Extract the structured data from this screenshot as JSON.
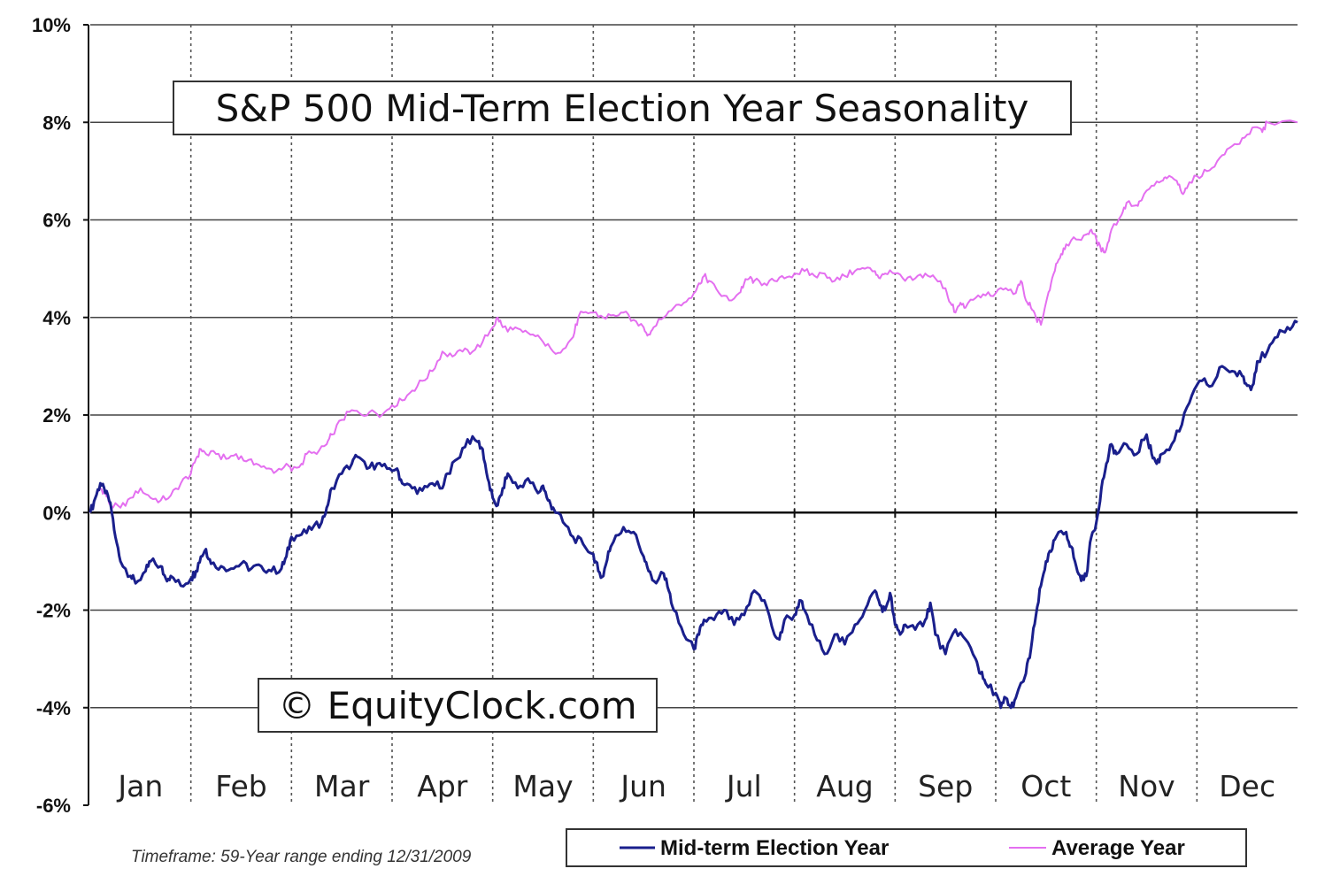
{
  "chart_data": {
    "type": "line",
    "title": "S&P 500 Mid-Term Election Year Seasonality",
    "watermark": "© EquityClock.com",
    "footnote": "Timeframe: 59-Year range ending 12/31/2009",
    "ylim": [
      -6,
      10
    ],
    "ytick_values": [
      10,
      8,
      6,
      4,
      2,
      0,
      -2,
      -4,
      -6
    ],
    "ytick_labels": [
      "10%",
      "8%",
      "6%",
      "4%",
      "2%",
      "0%",
      "-2%",
      "-4%",
      "-6%"
    ],
    "x_categories": [
      "Jan",
      "Feb",
      "Mar",
      "Apr",
      "May",
      "Jun",
      "Jul",
      "Aug",
      "Sep",
      "Oct",
      "Nov",
      "Dec"
    ],
    "xlim": [
      0,
      12
    ],
    "grid": "horizontal solid at y ticks, vertical dotted at month boundaries",
    "legend_position": "bottom-right",
    "series": [
      {
        "name": "Mid-term Election Year",
        "color": "#1a1f8c",
        "points": [
          [
            0,
            0
          ],
          [
            0.05,
            0.3
          ],
          [
            0.1,
            0.6
          ],
          [
            0.15,
            0.4
          ],
          [
            0.2,
            0.2
          ],
          [
            0.25,
            -0.5
          ],
          [
            0.3,
            -1.0
          ],
          [
            0.4,
            -1.3
          ],
          [
            0.45,
            -1.45
          ],
          [
            0.55,
            -1.2
          ],
          [
            0.6,
            -1.0
          ],
          [
            0.7,
            -1.1
          ],
          [
            0.75,
            -1.35
          ],
          [
            0.8,
            -1.3
          ],
          [
            0.9,
            -1.5
          ],
          [
            1.0,
            -1.35
          ],
          [
            1.05,
            -1.2
          ],
          [
            1.1,
            -0.9
          ],
          [
            1.15,
            -0.75
          ],
          [
            1.2,
            -1.05
          ],
          [
            1.3,
            -1.1
          ],
          [
            1.4,
            -1.15
          ],
          [
            1.5,
            -1.05
          ],
          [
            1.6,
            -1.15
          ],
          [
            1.7,
            -1.1
          ],
          [
            1.8,
            -1.2
          ],
          [
            1.9,
            -1.15
          ],
          [
            1.95,
            -0.9
          ],
          [
            2.0,
            -0.5
          ],
          [
            2.1,
            -0.45
          ],
          [
            2.2,
            -0.35
          ],
          [
            2.3,
            -0.2
          ],
          [
            2.35,
            0.1
          ],
          [
            2.4,
            0.5
          ],
          [
            2.5,
            0.8
          ],
          [
            2.6,
            1.0
          ],
          [
            2.65,
            1.15
          ],
          [
            2.75,
            0.9
          ],
          [
            2.85,
            1.0
          ],
          [
            2.95,
            0.9
          ],
          [
            3.05,
            0.9
          ],
          [
            3.1,
            0.6
          ],
          [
            3.2,
            0.5
          ],
          [
            3.3,
            0.45
          ],
          [
            3.4,
            0.6
          ],
          [
            3.5,
            0.5
          ],
          [
            3.55,
            0.8
          ],
          [
            3.65,
            1.1
          ],
          [
            3.75,
            1.5
          ],
          [
            3.85,
            1.45
          ],
          [
            3.9,
            1.3
          ],
          [
            3.95,
            0.7
          ],
          [
            4.0,
            0.3
          ],
          [
            4.05,
            0.15
          ],
          [
            4.1,
            0.5
          ],
          [
            4.15,
            0.8
          ],
          [
            4.25,
            0.5
          ],
          [
            4.35,
            0.7
          ],
          [
            4.45,
            0.4
          ],
          [
            4.5,
            0.55
          ],
          [
            4.55,
            0.25
          ],
          [
            4.6,
            0.1
          ],
          [
            4.7,
            -0.2
          ],
          [
            4.8,
            -0.5
          ],
          [
            4.9,
            -0.65
          ],
          [
            5.0,
            -0.85
          ],
          [
            5.05,
            -1.2
          ],
          [
            5.1,
            -1.3
          ],
          [
            5.15,
            -0.8
          ],
          [
            5.2,
            -0.6
          ],
          [
            5.3,
            -0.3
          ],
          [
            5.4,
            -0.4
          ],
          [
            5.5,
            -0.9
          ],
          [
            5.55,
            -1.2
          ],
          [
            5.6,
            -1.4
          ],
          [
            5.7,
            -1.25
          ],
          [
            5.75,
            -1.6
          ],
          [
            5.8,
            -2.0
          ],
          [
            5.9,
            -2.5
          ],
          [
            6.0,
            -2.8
          ],
          [
            6.05,
            -2.5
          ],
          [
            6.1,
            -2.2
          ],
          [
            6.2,
            -2.2
          ],
          [
            6.3,
            -2.0
          ],
          [
            6.4,
            -2.3
          ],
          [
            6.5,
            -2.1
          ],
          [
            6.6,
            -1.6
          ],
          [
            6.7,
            -1.8
          ],
          [
            6.8,
            -2.5
          ],
          [
            6.85,
            -2.6
          ],
          [
            6.9,
            -2.2
          ],
          [
            7.0,
            -2.1
          ],
          [
            7.05,
            -1.8
          ],
          [
            7.1,
            -2.0
          ],
          [
            7.2,
            -2.5
          ],
          [
            7.3,
            -2.9
          ],
          [
            7.4,
            -2.5
          ],
          [
            7.5,
            -2.7
          ],
          [
            7.6,
            -2.3
          ],
          [
            7.7,
            -2.0
          ],
          [
            7.8,
            -1.6
          ],
          [
            7.85,
            -1.9
          ],
          [
            7.9,
            -2.0
          ],
          [
            7.95,
            -1.65
          ],
          [
            8.0,
            -2.3
          ],
          [
            8.05,
            -2.5
          ],
          [
            8.1,
            -2.3
          ],
          [
            8.2,
            -2.4
          ],
          [
            8.3,
            -2.2
          ],
          [
            8.35,
            -1.85
          ],
          [
            8.4,
            -2.5
          ],
          [
            8.5,
            -2.9
          ],
          [
            8.6,
            -2.4
          ],
          [
            8.7,
            -2.6
          ],
          [
            8.8,
            -3.0
          ],
          [
            8.85,
            -3.3
          ],
          [
            8.9,
            -3.5
          ],
          [
            9.0,
            -3.7
          ],
          [
            9.05,
            -4.0
          ],
          [
            9.1,
            -3.8
          ],
          [
            9.15,
            -4.0
          ],
          [
            9.2,
            -3.8
          ],
          [
            9.3,
            -3.3
          ],
          [
            9.35,
            -2.8
          ],
          [
            9.4,
            -2.1
          ],
          [
            9.45,
            -1.5
          ],
          [
            9.5,
            -1.0
          ],
          [
            9.55,
            -0.8
          ],
          [
            9.6,
            -0.5
          ],
          [
            9.7,
            -0.4
          ],
          [
            9.75,
            -0.7
          ],
          [
            9.8,
            -1.1
          ],
          [
            9.85,
            -1.4
          ],
          [
            9.9,
            -1.3
          ],
          [
            9.95,
            -0.5
          ],
          [
            10.0,
            -0.2
          ],
          [
            10.05,
            0.5
          ],
          [
            10.1,
            1.0
          ],
          [
            10.15,
            1.4
          ],
          [
            10.2,
            1.2
          ],
          [
            10.3,
            1.4
          ],
          [
            10.4,
            1.2
          ],
          [
            10.5,
            1.6
          ],
          [
            10.55,
            1.2
          ],
          [
            10.6,
            1.0
          ],
          [
            10.65,
            1.2
          ],
          [
            10.75,
            1.4
          ],
          [
            10.85,
            1.8
          ],
          [
            10.95,
            2.4
          ],
          [
            11.05,
            2.7
          ],
          [
            11.15,
            2.6
          ],
          [
            11.25,
            3.0
          ],
          [
            11.35,
            2.9
          ],
          [
            11.45,
            2.8
          ],
          [
            11.5,
            2.6
          ],
          [
            11.55,
            2.6
          ],
          [
            11.6,
            3.1
          ],
          [
            11.7,
            3.3
          ],
          [
            11.8,
            3.6
          ],
          [
            11.9,
            3.8
          ],
          [
            12.0,
            3.9
          ]
        ]
      },
      {
        "name": "Average Year",
        "color": "#e46ff0",
        "points": [
          [
            0,
            0
          ],
          [
            0.05,
            0.3
          ],
          [
            0.1,
            0.5
          ],
          [
            0.15,
            0.4
          ],
          [
            0.2,
            0.15
          ],
          [
            0.3,
            0.1
          ],
          [
            0.4,
            0.3
          ],
          [
            0.5,
            0.5
          ],
          [
            0.6,
            0.3
          ],
          [
            0.7,
            0.25
          ],
          [
            0.8,
            0.35
          ],
          [
            0.9,
            0.6
          ],
          [
            1.0,
            0.8
          ],
          [
            1.05,
            1.1
          ],
          [
            1.1,
            1.3
          ],
          [
            1.15,
            1.2
          ],
          [
            1.25,
            1.2
          ],
          [
            1.35,
            1.1
          ],
          [
            1.45,
            1.2
          ],
          [
            1.55,
            1.05
          ],
          [
            1.65,
            1.0
          ],
          [
            1.75,
            0.9
          ],
          [
            1.85,
            0.85
          ],
          [
            1.95,
            1.0
          ],
          [
            2.0,
            0.85
          ],
          [
            2.1,
            1.0
          ],
          [
            2.15,
            1.2
          ],
          [
            2.25,
            1.2
          ],
          [
            2.35,
            1.4
          ],
          [
            2.4,
            1.6
          ],
          [
            2.5,
            1.9
          ],
          [
            2.6,
            2.1
          ],
          [
            2.7,
            2.0
          ],
          [
            2.8,
            2.1
          ],
          [
            2.9,
            2.0
          ],
          [
            3.0,
            2.2
          ],
          [
            3.1,
            2.3
          ],
          [
            3.2,
            2.5
          ],
          [
            3.3,
            2.7
          ],
          [
            3.4,
            2.9
          ],
          [
            3.5,
            3.3
          ],
          [
            3.6,
            3.2
          ],
          [
            3.7,
            3.3
          ],
          [
            3.8,
            3.3
          ],
          [
            3.9,
            3.5
          ],
          [
            4.0,
            3.8
          ],
          [
            4.05,
            4.0
          ],
          [
            4.1,
            3.8
          ],
          [
            4.2,
            3.75
          ],
          [
            4.3,
            3.7
          ],
          [
            4.4,
            3.65
          ],
          [
            4.5,
            3.5
          ],
          [
            4.6,
            3.3
          ],
          [
            4.7,
            3.35
          ],
          [
            4.8,
            3.6
          ],
          [
            4.85,
            4.0
          ],
          [
            4.9,
            4.1
          ],
          [
            5.0,
            4.1
          ],
          [
            5.1,
            4.0
          ],
          [
            5.2,
            4.05
          ],
          [
            5.3,
            4.1
          ],
          [
            5.4,
            3.95
          ],
          [
            5.5,
            3.8
          ],
          [
            5.55,
            3.65
          ],
          [
            5.6,
            3.8
          ],
          [
            5.7,
            4.0
          ],
          [
            5.8,
            4.2
          ],
          [
            5.9,
            4.3
          ],
          [
            6.0,
            4.5
          ],
          [
            6.05,
            4.7
          ],
          [
            6.1,
            4.85
          ],
          [
            6.15,
            4.75
          ],
          [
            6.25,
            4.5
          ],
          [
            6.35,
            4.35
          ],
          [
            6.45,
            4.5
          ],
          [
            6.5,
            4.7
          ],
          [
            6.55,
            4.8
          ],
          [
            6.6,
            4.75
          ],
          [
            6.7,
            4.7
          ],
          [
            6.8,
            4.75
          ],
          [
            6.9,
            4.8
          ],
          [
            7.0,
            4.9
          ],
          [
            7.1,
            4.95
          ],
          [
            7.2,
            4.85
          ],
          [
            7.3,
            4.9
          ],
          [
            7.4,
            4.75
          ],
          [
            7.5,
            4.85
          ],
          [
            7.6,
            4.95
          ],
          [
            7.7,
            5.0
          ],
          [
            7.8,
            4.95
          ],
          [
            7.85,
            4.8
          ],
          [
            7.9,
            4.9
          ],
          [
            8.0,
            4.9
          ],
          [
            8.1,
            4.75
          ],
          [
            8.2,
            4.8
          ],
          [
            8.3,
            4.9
          ],
          [
            8.4,
            4.8
          ],
          [
            8.5,
            4.6
          ],
          [
            8.55,
            4.3
          ],
          [
            8.6,
            4.1
          ],
          [
            8.65,
            4.3
          ],
          [
            8.7,
            4.2
          ],
          [
            8.8,
            4.4
          ],
          [
            8.9,
            4.45
          ],
          [
            9.0,
            4.5
          ],
          [
            9.1,
            4.6
          ],
          [
            9.2,
            4.5
          ],
          [
            9.25,
            4.75
          ],
          [
            9.3,
            4.35
          ],
          [
            9.35,
            4.2
          ],
          [
            9.4,
            4.0
          ],
          [
            9.45,
            3.85
          ],
          [
            9.5,
            4.3
          ],
          [
            9.55,
            4.7
          ],
          [
            9.6,
            5.1
          ],
          [
            9.65,
            5.3
          ],
          [
            9.7,
            5.5
          ],
          [
            9.8,
            5.6
          ],
          [
            9.9,
            5.7
          ],
          [
            9.95,
            5.8
          ],
          [
            10.0,
            5.6
          ],
          [
            10.05,
            5.35
          ],
          [
            10.1,
            5.4
          ],
          [
            10.15,
            5.8
          ],
          [
            10.25,
            6.1
          ],
          [
            10.3,
            6.35
          ],
          [
            10.4,
            6.3
          ],
          [
            10.45,
            6.4
          ],
          [
            10.55,
            6.7
          ],
          [
            10.65,
            6.8
          ],
          [
            10.7,
            6.85
          ],
          [
            10.8,
            6.8
          ],
          [
            10.85,
            6.55
          ],
          [
            10.9,
            6.65
          ],
          [
            11.0,
            6.9
          ],
          [
            11.1,
            7.0
          ],
          [
            11.2,
            7.2
          ],
          [
            11.3,
            7.45
          ],
          [
            11.4,
            7.55
          ],
          [
            11.5,
            7.75
          ],
          [
            11.6,
            7.9
          ],
          [
            11.65,
            7.8
          ],
          [
            11.7,
            8.0
          ],
          [
            12.0,
            8.0
          ]
        ]
      }
    ]
  }
}
